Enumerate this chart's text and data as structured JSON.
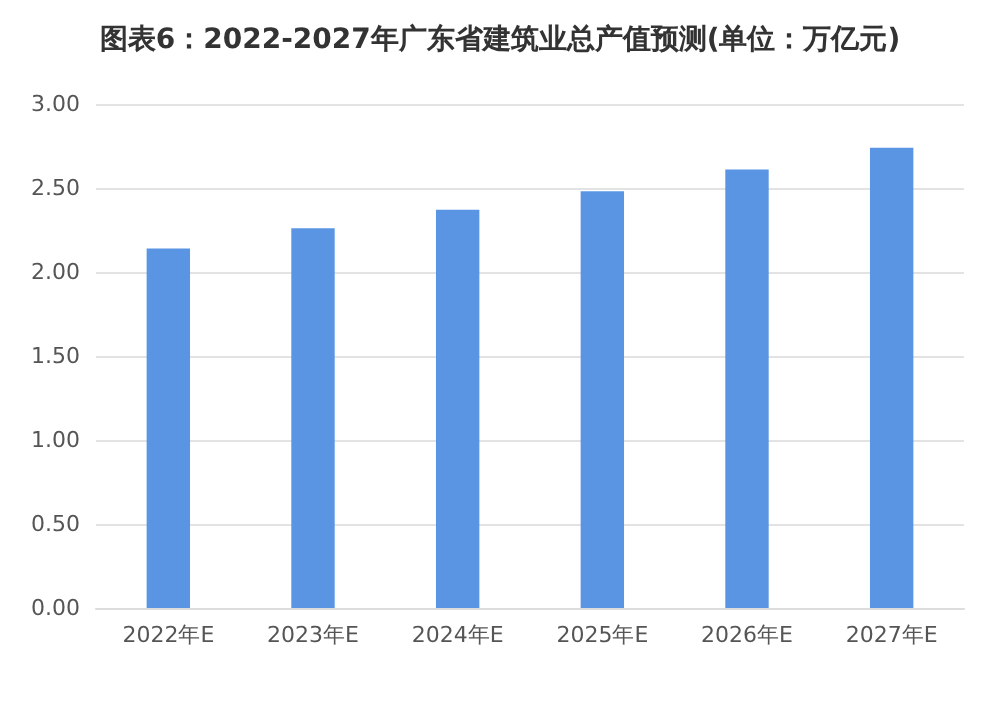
{
  "chart_data": {
    "type": "bar",
    "title": "图表6：2022-2027年广东省建筑业总产值预测(单位：万亿元)",
    "categories": [
      "2022年E",
      "2023年E",
      "2024年E",
      "2025年E",
      "2026年E",
      "2027年E"
    ],
    "values": [
      2.14,
      2.26,
      2.37,
      2.48,
      2.61,
      2.74
    ],
    "color": "#5a95e3",
    "ylim": [
      0,
      3
    ],
    "yticks": [
      {
        "value": 0,
        "label": "0.00"
      },
      {
        "value": 0.5,
        "label": "0.50"
      },
      {
        "value": 1,
        "label": "1.00"
      },
      {
        "value": 1.5,
        "label": "1.50"
      },
      {
        "value": 2,
        "label": "2.00"
      },
      {
        "value": 2.5,
        "label": "2.50"
      },
      {
        "value": 3,
        "label": "3.00"
      }
    ],
    "grid": "y"
  }
}
